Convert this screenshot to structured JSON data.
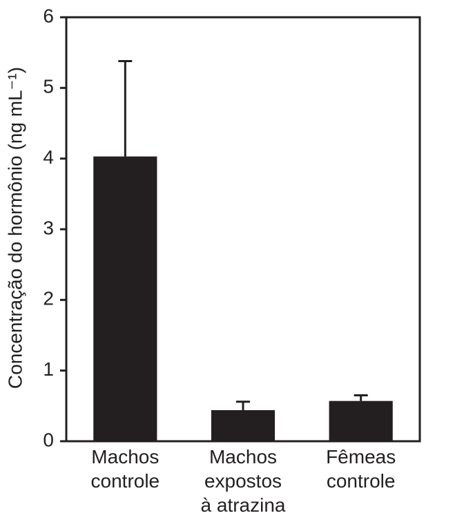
{
  "chart_data": {
    "type": "bar",
    "title": "",
    "xlabel": "",
    "ylabel": "Concentração do hormônio (ng mL⁻¹)",
    "ylim": [
      0,
      6
    ],
    "yticks": [
      "0",
      "1",
      "2",
      "3",
      "4",
      "5",
      "6"
    ],
    "grid": false,
    "categories": [
      [
        "Machos",
        "controle"
      ],
      [
        "Machos",
        "expostos",
        "à atrazina"
      ],
      [
        "Fêmeas",
        "controle"
      ]
    ],
    "values": [
      4.03,
      0.44,
      0.57
    ],
    "error_upper": [
      5.38,
      0.56,
      0.65
    ],
    "colors": {
      "bar": "#231f20",
      "axis": "#231f20"
    }
  }
}
